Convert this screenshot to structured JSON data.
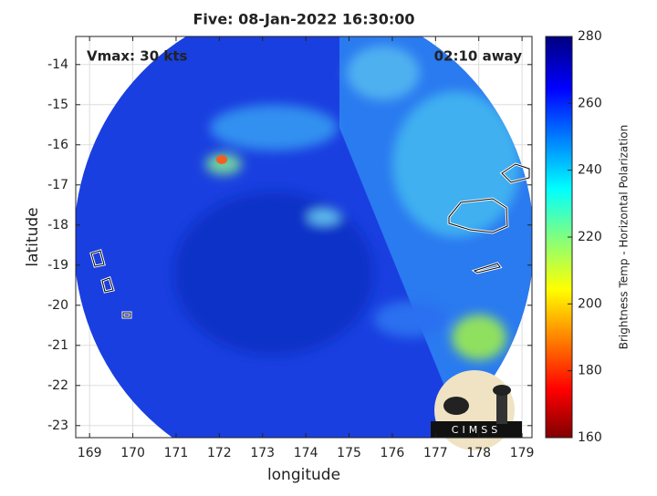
{
  "chart_data": {
    "type": "image",
    "title": "Five: 08-Jan-2022 16:30:00",
    "annotations": [
      "Vmax: 30 kts",
      "02:10 away"
    ],
    "x_label": "longitude",
    "y_label": "latitude",
    "xlim": [
      168.68,
      179.23
    ],
    "xticks": [
      169,
      170,
      171,
      172,
      173,
      174,
      175,
      176,
      177,
      178,
      179
    ],
    "ylim": [
      -23.3,
      -13.3
    ],
    "yticks": [
      -14,
      -15,
      -16,
      -17,
      -18,
      -19,
      -20,
      -21,
      -22,
      -23
    ],
    "grid": true,
    "colorbar": {
      "label": "Brightness Temp - Horizontal Polarization",
      "lim": [
        160,
        280
      ],
      "ticks": [
        160,
        180,
        200,
        220,
        240,
        260,
        280
      ]
    },
    "logo": "CIMSS"
  }
}
